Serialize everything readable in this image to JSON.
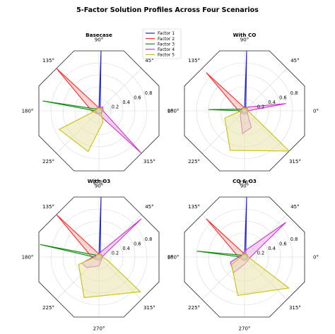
{
  "chart_data": {
    "title": "5-Factor Solution Profiles Across Four Scenarios",
    "type": "radar",
    "angles_deg": [
      0,
      45,
      90,
      135,
      180,
      225,
      270,
      315
    ],
    "angle_labels": [
      "0°",
      "45°",
      "90°",
      "135°",
      "180°",
      "225°",
      "270°",
      "315°"
    ],
    "r_ticks": [
      0.2,
      0.4,
      0.6,
      0.8
    ],
    "r_tick_labels": [
      "0.2",
      "0.4",
      "0.6",
      "0.8"
    ],
    "r_max": 1.0,
    "grid": true,
    "legend_placement": "top-center",
    "legend": [
      "Factor 1",
      "Factor 2",
      "Factor 3",
      "Factor 4",
      "Factor 5"
    ],
    "colors": [
      "#1f1fd6",
      "#ff2a2a",
      "#118a11",
      "#cc33cc",
      "#c8c010"
    ],
    "fill_colors": [
      "#9fb0e8",
      "#f3b6b0",
      "#a9d49f",
      "#eab1ea",
      "#e8e4a8"
    ],
    "subplots": [
      {
        "title": "Basecase",
        "series": [
          {
            "name": "Factor 1",
            "points": [
              [
                0,
                0.03
              ],
              [
                45,
                0.03
              ],
              [
                88,
                1.0
              ],
              [
                90,
                0.03
              ],
              [
                135,
                0.03
              ],
              [
                180,
                0.03
              ],
              [
                225,
                0.03
              ],
              [
                270,
                0.03
              ],
              [
                315,
                0.03
              ]
            ]
          },
          {
            "name": "Factor 2",
            "points": [
              [
                0,
                0.06
              ],
              [
                45,
                0.06
              ],
              [
                90,
                0.05
              ],
              [
                135,
                1.0
              ],
              [
                180,
                0.12
              ],
              [
                225,
                0.06
              ],
              [
                270,
                0.06
              ],
              [
                315,
                0.06
              ]
            ]
          },
          {
            "name": "Factor 3",
            "points": [
              [
                0,
                0.04
              ],
              [
                45,
                0.04
              ],
              [
                90,
                0.04
              ],
              [
                135,
                0.04
              ],
              [
                170,
                0.95
              ],
              [
                180,
                0.06
              ],
              [
                225,
                0.04
              ],
              [
                270,
                0.04
              ],
              [
                315,
                0.04
              ]
            ]
          },
          {
            "name": "Factor 4",
            "points": [
              [
                0,
                0.07
              ],
              [
                45,
                0.09
              ],
              [
                90,
                0.05
              ],
              [
                135,
                0.06
              ],
              [
                180,
                0.05
              ],
              [
                225,
                0.06
              ],
              [
                270,
                0.06
              ],
              [
                315,
                1.0
              ]
            ]
          },
          {
            "name": "Factor 5",
            "points": [
              [
                0,
                0.06
              ],
              [
                45,
                0.05
              ],
              [
                90,
                0.05
              ],
              [
                135,
                0.05
              ],
              [
                180,
                0.06
              ],
              [
                205,
                0.73
              ],
              [
                255,
                0.7
              ],
              [
                290,
                0.2
              ],
              [
                315,
                0.05
              ]
            ]
          }
        ]
      },
      {
        "title": "With CO",
        "series": [
          {
            "name": "Factor 1",
            "points": [
              [
                0,
                0.03
              ],
              [
                45,
                0.03
              ],
              [
                88,
                1.0
              ],
              [
                90,
                0.03
              ],
              [
                135,
                0.03
              ],
              [
                180,
                0.03
              ],
              [
                225,
                0.03
              ],
              [
                270,
                0.03
              ],
              [
                315,
                0.03
              ]
            ]
          },
          {
            "name": "Factor 2",
            "points": [
              [
                0,
                0.06
              ],
              [
                45,
                0.06
              ],
              [
                90,
                0.05
              ],
              [
                135,
                0.9
              ],
              [
                180,
                0.1
              ],
              [
                225,
                0.06
              ],
              [
                270,
                0.06
              ],
              [
                315,
                0.06
              ]
            ]
          },
          {
            "name": "Factor 3",
            "points": [
              [
                0,
                0.04
              ],
              [
                45,
                0.04
              ],
              [
                90,
                0.04
              ],
              [
                135,
                0.04
              ],
              [
                178,
                0.6
              ],
              [
                180,
                0.06
              ],
              [
                225,
                0.04
              ],
              [
                270,
                0.04
              ],
              [
                315,
                0.04
              ]
            ]
          },
          {
            "name": "Factor 4",
            "points": [
              [
                0,
                0.05
              ],
              [
                10,
                0.7
              ],
              [
                45,
                0.09
              ],
              [
                90,
                0.05
              ],
              [
                135,
                0.06
              ],
              [
                180,
                0.05
              ],
              [
                225,
                0.1
              ],
              [
                265,
                0.38
              ],
              [
                292,
                0.3
              ],
              [
                315,
                0.07
              ]
            ]
          },
          {
            "name": "Factor 5",
            "points": [
              [
                0,
                0.06
              ],
              [
                45,
                0.05
              ],
              [
                90,
                0.05
              ],
              [
                135,
                0.05
              ],
              [
                180,
                0.06
              ],
              [
                200,
                0.35
              ],
              [
                250,
                0.7
              ],
              [
                318,
                1.0
              ],
              [
                340,
                0.1
              ]
            ]
          }
        ]
      },
      {
        "title": "With O3",
        "series": [
          {
            "name": "Factor 1",
            "points": [
              [
                0,
                0.03
              ],
              [
                45,
                0.03
              ],
              [
                88,
                1.0
              ],
              [
                90,
                0.03
              ],
              [
                135,
                0.03
              ],
              [
                180,
                0.03
              ],
              [
                225,
                0.03
              ],
              [
                270,
                0.03
              ],
              [
                315,
                0.03
              ]
            ]
          },
          {
            "name": "Factor 2",
            "points": [
              [
                0,
                0.06
              ],
              [
                45,
                0.06
              ],
              [
                90,
                0.05
              ],
              [
                135,
                1.0
              ],
              [
                180,
                0.12
              ],
              [
                225,
                0.06
              ],
              [
                270,
                0.06
              ],
              [
                315,
                0.06
              ]
            ]
          },
          {
            "name": "Factor 3",
            "points": [
              [
                0,
                0.04
              ],
              [
                45,
                0.04
              ],
              [
                90,
                0.04
              ],
              [
                135,
                0.04
              ],
              [
                168,
                1.0
              ],
              [
                180,
                0.08
              ],
              [
                225,
                0.04
              ],
              [
                270,
                0.04
              ],
              [
                315,
                0.04
              ]
            ]
          },
          {
            "name": "Factor 4",
            "points": [
              [
                0,
                0.05
              ],
              [
                42,
                0.95
              ],
              [
                90,
                0.06
              ],
              [
                135,
                0.05
              ],
              [
                180,
                0.1
              ],
              [
                200,
                0.3
              ],
              [
                220,
                0.27
              ],
              [
                270,
                0.15
              ],
              [
                315,
                0.06
              ]
            ]
          },
          {
            "name": "Factor 5",
            "points": [
              [
                0,
                0.06
              ],
              [
                45,
                0.05
              ],
              [
                90,
                0.05
              ],
              [
                135,
                0.05
              ],
              [
                180,
                0.06
              ],
              [
                200,
                0.36
              ],
              [
                250,
                0.72
              ],
              [
                320,
                0.9
              ],
              [
                340,
                0.15
              ]
            ]
          }
        ]
      },
      {
        "title": "CO & O3",
        "series": [
          {
            "name": "Factor 1",
            "points": [
              [
                0,
                0.03
              ],
              [
                45,
                0.03
              ],
              [
                88,
                1.0
              ],
              [
                90,
                0.03
              ],
              [
                135,
                0.03
              ],
              [
                180,
                0.03
              ],
              [
                225,
                0.03
              ],
              [
                270,
                0.03
              ],
              [
                315,
                0.03
              ]
            ]
          },
          {
            "name": "Factor 2",
            "points": [
              [
                0,
                0.06
              ],
              [
                45,
                0.06
              ],
              [
                90,
                0.05
              ],
              [
                135,
                0.9
              ],
              [
                180,
                0.1
              ],
              [
                225,
                0.06
              ],
              [
                270,
                0.06
              ],
              [
                315,
                0.06
              ]
            ]
          },
          {
            "name": "Factor 3",
            "points": [
              [
                0,
                0.04
              ],
              [
                45,
                0.04
              ],
              [
                90,
                0.04
              ],
              [
                135,
                0.04
              ],
              [
                173,
                0.8
              ],
              [
                180,
                0.06
              ],
              [
                225,
                0.04
              ],
              [
                270,
                0.04
              ],
              [
                315,
                0.04
              ]
            ]
          },
          {
            "name": "Factor 4",
            "points": [
              [
                0,
                0.1
              ],
              [
                40,
                0.9
              ],
              [
                90,
                0.1
              ],
              [
                135,
                0.05
              ],
              [
                180,
                0.1
              ],
              [
                200,
                0.25
              ],
              [
                235,
                0.32
              ],
              [
                270,
                0.12
              ],
              [
                315,
                0.08
              ]
            ]
          },
          {
            "name": "Factor 5",
            "points": [
              [
                0,
                0.06
              ],
              [
                45,
                0.05
              ],
              [
                90,
                0.05
              ],
              [
                135,
                0.05
              ],
              [
                180,
                0.06
              ],
              [
                210,
                0.25
              ],
              [
                260,
                0.65
              ],
              [
                325,
                0.9
              ],
              [
                345,
                0.1
              ]
            ]
          }
        ]
      }
    ]
  }
}
